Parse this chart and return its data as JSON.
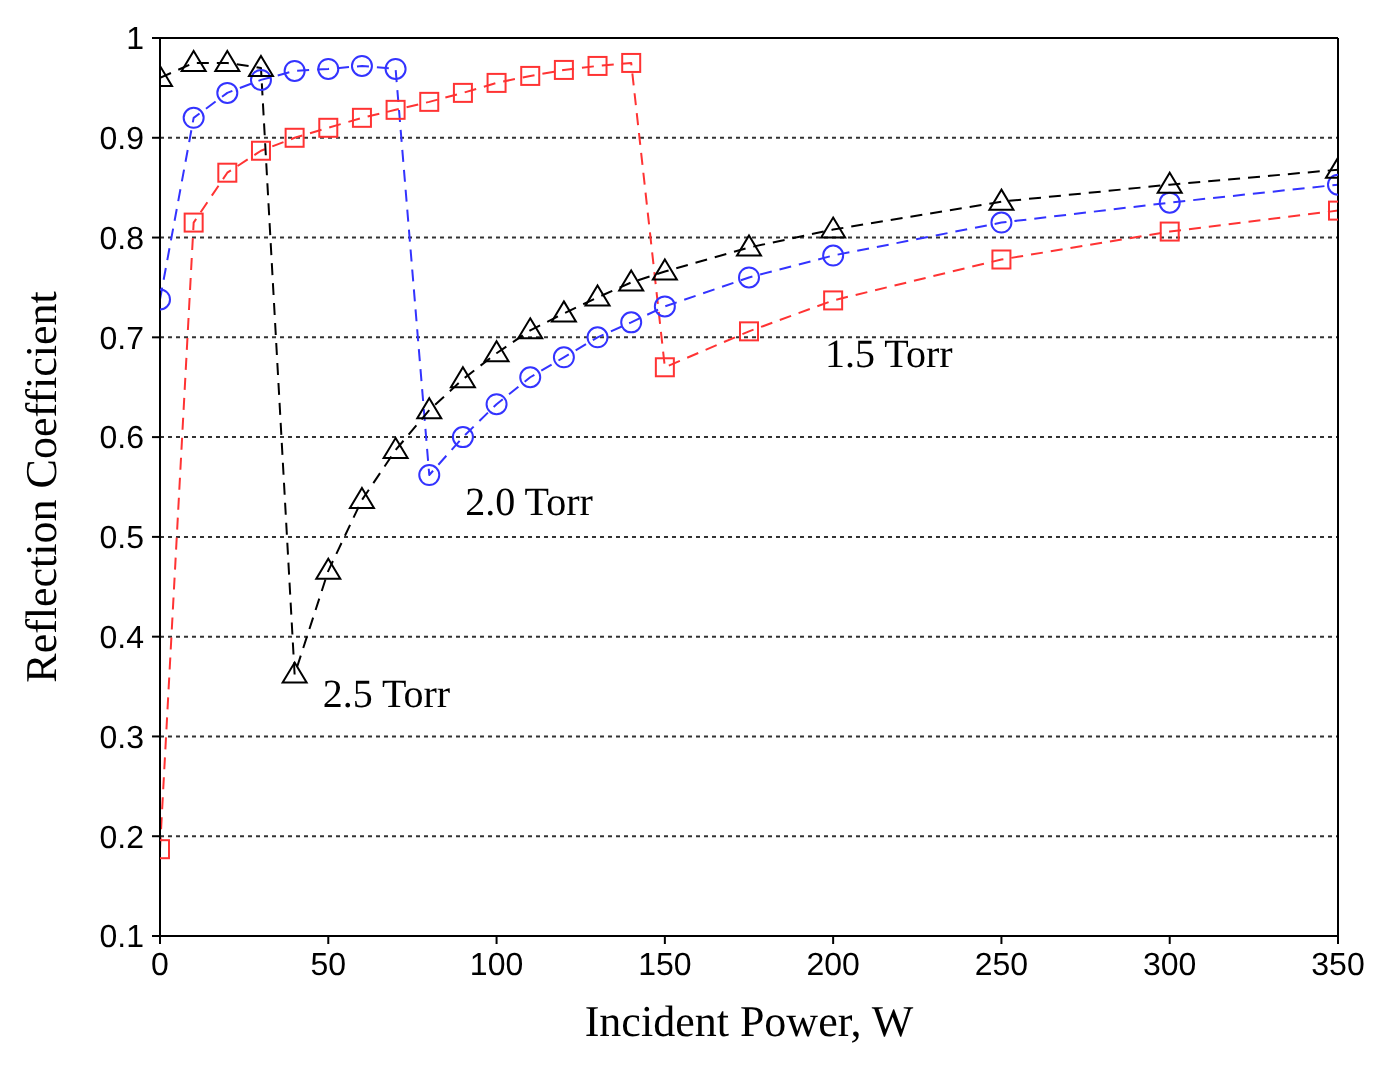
{
  "chart_data": {
    "type": "line",
    "xlabel": "Incident Power, W",
    "ylabel": "Reflection Coefficient",
    "xlim": [
      0,
      350
    ],
    "xticks": [
      0,
      50,
      100,
      150,
      200,
      250,
      300,
      350
    ],
    "ylim": [
      0.1,
      1
    ],
    "yticks": [
      0.1,
      0.2,
      0.3,
      0.4,
      0.5,
      0.6,
      0.7,
      0.8,
      0.9,
      1
    ],
    "grid": "y",
    "line_style": "dashed",
    "legend": false,
    "x": [
      0,
      10,
      20,
      30,
      40,
      50,
      60,
      70,
      80,
      90,
      100,
      110,
      120,
      130,
      140,
      150,
      175,
      200,
      250,
      300,
      350
    ],
    "series": [
      {
        "name": "1.5 Torr",
        "color": "#ff3333",
        "marker": "square",
        "values": [
          0.187,
          0.815,
          0.865,
          0.887,
          0.9,
          0.91,
          0.92,
          0.928,
          0.936,
          0.945,
          0.955,
          0.962,
          0.968,
          0.972,
          0.975,
          0.67,
          0.706,
          0.737,
          0.778,
          0.806,
          0.827
        ]
      },
      {
        "name": "2.0 Torr",
        "color": "#3333ff",
        "marker": "circle",
        "values": [
          0.738,
          0.92,
          0.945,
          0.958,
          0.967,
          0.969,
          0.972,
          0.969,
          0.562,
          0.6,
          0.633,
          0.66,
          0.68,
          0.7,
          0.715,
          0.731,
          0.76,
          0.782,
          0.815,
          0.835,
          0.853
        ]
      },
      {
        "name": "2.5 Torr",
        "color": "#000000",
        "marker": "triangle",
        "values": [
          0.96,
          0.975,
          0.975,
          0.97,
          0.362,
          0.466,
          0.537,
          0.587,
          0.627,
          0.658,
          0.684,
          0.707,
          0.724,
          0.74,
          0.755,
          0.766,
          0.79,
          0.808,
          0.836,
          0.853,
          0.868
        ]
      }
    ]
  }
}
